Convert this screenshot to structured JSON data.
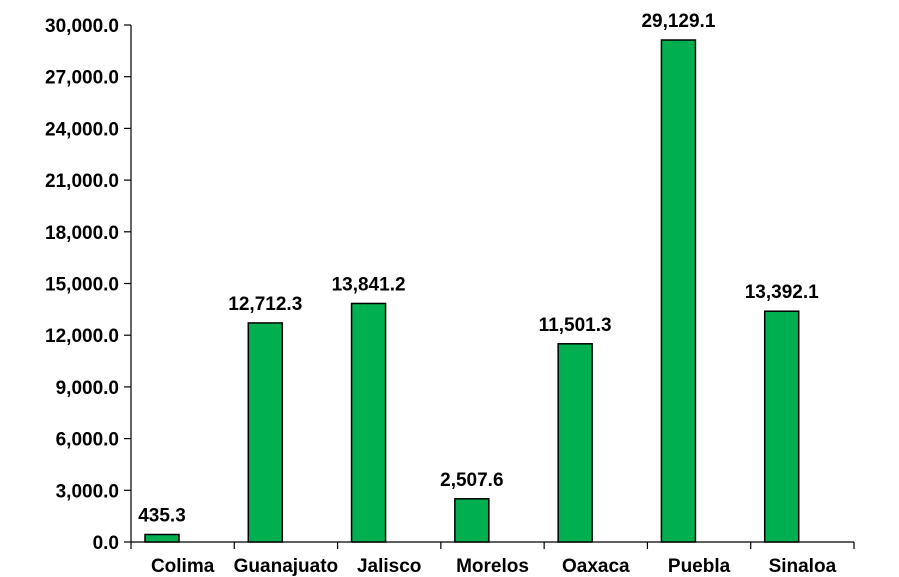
{
  "chart_data": {
    "type": "bar",
    "categories": [
      "Colima",
      "Guanajuato",
      "Jalisco",
      "Morelos",
      "Oaxaca",
      "Puebla",
      "Sinaloa"
    ],
    "values": [
      435.3,
      12712.3,
      13841.2,
      2507.6,
      11501.3,
      29129.1,
      13392.1
    ],
    "value_labels": [
      "435.3",
      "12,712.3",
      "13,841.2",
      "2,507.6",
      "11,501.3",
      "29,129.1",
      "13,392.1"
    ],
    "ylim": [
      0,
      30000
    ],
    "yticks": [
      0,
      3000,
      6000,
      9000,
      12000,
      15000,
      18000,
      21000,
      24000,
      27000,
      30000
    ],
    "ytick_labels": [
      "0.0",
      "3,000.0",
      "6,000.0",
      "9,000.0",
      "12,000.0",
      "15,000.0",
      "18,000.0",
      "21,000.0",
      "24,000.0",
      "27,000.0",
      "30,000.0"
    ],
    "grid": false,
    "legend": "none",
    "colors": {
      "bar_fill": "#00b050",
      "bar_stroke": "#000000",
      "axis": "#000000"
    }
  }
}
